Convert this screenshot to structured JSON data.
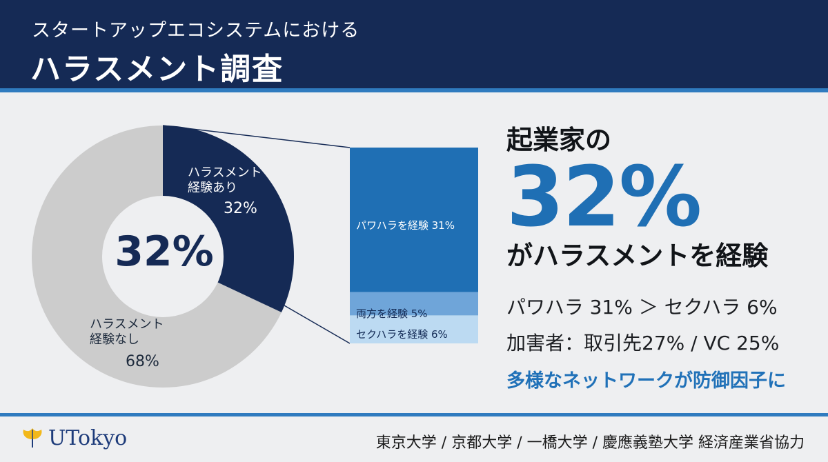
{
  "header": {
    "subtitle": "スタートアップエコシステムにおける",
    "title": "ハラスメント調査"
  },
  "donut": {
    "center_label": "32%",
    "segments": [
      {
        "line1": "ハラスメント",
        "line2": "経験あり",
        "value_label": "32%",
        "value": 32
      },
      {
        "line1": "ハラスメント",
        "line2": "経験なし",
        "value_label": "68%",
        "value": 68
      }
    ]
  },
  "breakdown": [
    {
      "label": "パワハラを経験 31%",
      "value": 31
    },
    {
      "label": "両方を経験 5%",
      "value": 5
    },
    {
      "label": "セクハラを経験 6%",
      "value": 6
    }
  ],
  "summary": {
    "kicker": "起業家の",
    "big_number": "32%",
    "headline": "がハラスメントを経験",
    "stat1": "パワハラ 31% ＞ セクハラ 6%",
    "stat2": "加害者：取引先27% / VC 25%",
    "note": "多様なネットワークが防御因子に"
  },
  "footer": {
    "logo_text": "UTokyo",
    "partners": "東京大学 / 京都大学 / 一橋大学 / 慶應義塾大学  経済産業省協力"
  },
  "colors": {
    "navy": "#152a55",
    "blue": "#1f6fb4",
    "gray": "#cccccc",
    "light_blue": "#6fa5d9",
    "pale_blue": "#bcdaf2"
  }
}
